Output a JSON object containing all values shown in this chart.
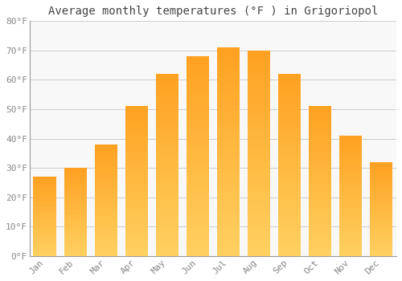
{
  "title": "Average monthly temperatures (°F ) in Grigoriopol",
  "months": [
    "Jan",
    "Feb",
    "Mar",
    "Apr",
    "May",
    "Jun",
    "Jul",
    "Aug",
    "Sep",
    "Oct",
    "Nov",
    "Dec"
  ],
  "values": [
    27,
    30,
    38,
    51,
    62,
    68,
    71,
    70,
    62,
    51,
    41,
    32
  ],
  "bar_color_light": "#FFD060",
  "bar_color_dark": "#FFA020",
  "background_color": "#FFFFFF",
  "plot_bg_color": "#F8F8F8",
  "grid_color": "#CCCCCC",
  "spine_color": "#999999",
  "ylim": [
    0,
    80
  ],
  "yticks": [
    0,
    10,
    20,
    30,
    40,
    50,
    60,
    70,
    80
  ],
  "ytick_labels": [
    "0°F",
    "10°F",
    "20°F",
    "30°F",
    "40°F",
    "50°F",
    "60°F",
    "70°F",
    "80°F"
  ],
  "title_fontsize": 10,
  "tick_fontsize": 8,
  "title_color": "#444444",
  "tick_color": "#888888",
  "bar_width": 0.75
}
